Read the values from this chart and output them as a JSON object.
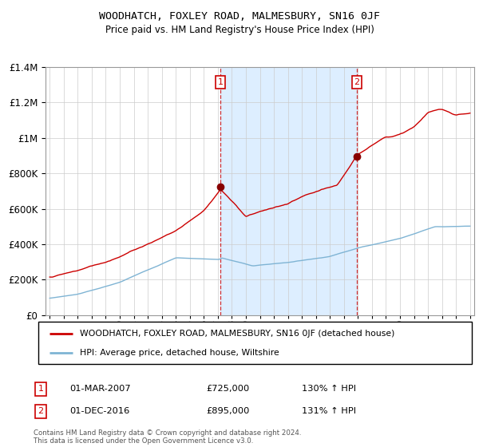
{
  "title": "WOODHATCH, FOXLEY ROAD, MALMESBURY, SN16 0JF",
  "subtitle": "Price paid vs. HM Land Registry's House Price Index (HPI)",
  "sale1_date": "01-MAR-2007",
  "sale1_price": 725000,
  "sale1_hpi": "130% ↑ HPI",
  "sale2_date": "01-DEC-2016",
  "sale2_price": 895000,
  "sale2_hpi": "131% ↑ HPI",
  "legend_red": "WOODHATCH, FOXLEY ROAD, MALMESBURY, SN16 0JF (detached house)",
  "legend_blue": "HPI: Average price, detached house, Wiltshire",
  "footer": "Contains HM Land Registry data © Crown copyright and database right 2024.\nThis data is licensed under the Open Government Licence v3.0.",
  "red_color": "#cc0000",
  "blue_color": "#7fb4d4",
  "shade_color": "#ddeeff",
  "marker1_x": 2007.17,
  "marker2_x": 2016.92,
  "ylim_max": 1400000,
  "ylim_min": 0,
  "xlim_min": 1994.7,
  "xlim_max": 2025.3
}
